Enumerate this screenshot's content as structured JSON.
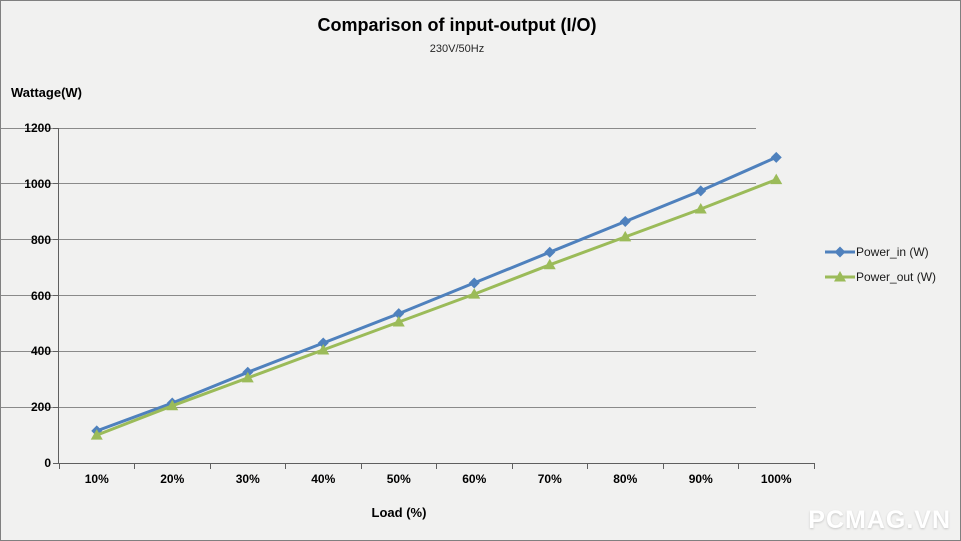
{
  "chart": {
    "title": "Comparison of input-output (I/O)",
    "subtitle": "230V/50Hz",
    "y_axis_title": "Wattage(W)",
    "x_axis_title": "Load (%)",
    "watermark": "PCMAG.VN"
  },
  "chart_data": {
    "type": "line",
    "title": "Comparison of input-output (I/O)",
    "subtitle": "230V/50Hz",
    "xlabel": "Load (%)",
    "ylabel": "Wattage(W)",
    "categories": [
      "10%",
      "20%",
      "30%",
      "40%",
      "50%",
      "60%",
      "70%",
      "80%",
      "90%",
      "100%"
    ],
    "series": [
      {
        "name": "Power_in (W)",
        "color": "#4f81bd",
        "marker": "diamond",
        "values": [
          115,
          215,
          325,
          430,
          535,
          645,
          755,
          865,
          975,
          1095
        ]
      },
      {
        "name": "Power_out (W)",
        "color": "#9bbb59",
        "marker": "triangle",
        "values": [
          100,
          205,
          305,
          405,
          505,
          605,
          710,
          810,
          910,
          1015
        ]
      }
    ],
    "ylim": [
      0,
      1200
    ],
    "yticks": [
      0,
      200,
      400,
      600,
      800,
      1000,
      1200
    ],
    "grid": true,
    "legend_position": "right"
  },
  "colors": {
    "background": "#f1f1f0",
    "gridline": "#8a8a8a",
    "axis": "#5f5f5f",
    "power_in": "#4f81bd",
    "power_out": "#9bbb59"
  }
}
